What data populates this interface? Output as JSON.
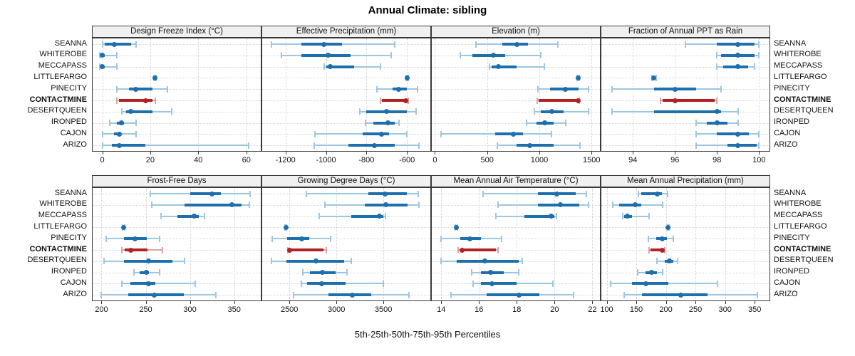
{
  "title": "Annual Climate: sibling",
  "caption": "5th-25th-50th-75th-95th Percentiles",
  "sites": [
    "SEANNA",
    "WHITEROBE",
    "MECCAPASS",
    "LITTLEFARGO",
    "PINECITY",
    "CONTACTMINE",
    "DESERTQUEEN",
    "IRONPED",
    "CAJON",
    "ARIZO"
  ],
  "highlight_site": "CONTACTMINE",
  "highlight_index": 5,
  "colors": {
    "blue": "#1d6fad",
    "blue_light": "#9ec6e0",
    "red": "#b22222",
    "red_light": "#dba3a3",
    "grid": "#d2d2d2",
    "header_bg": "#f0f0f0",
    "border": "#3a3a3a"
  },
  "chart_data": [
    {
      "type": "percentile-dotplot",
      "title": "Design Freeze Index (°C)",
      "xlim": [
        -4,
        66
      ],
      "ticks": [
        0,
        20,
        40,
        60
      ],
      "percentile_labels": [
        "p5",
        "p25",
        "p50",
        "p75",
        "p95"
      ],
      "values": [
        [
          0,
          1,
          5,
          12,
          14
        ],
        [
          -1,
          0,
          0,
          1,
          6
        ],
        [
          -1,
          0,
          0,
          1,
          6
        ],
        [
          21.5,
          21.8,
          22,
          22.2,
          22.5
        ],
        [
          6,
          11,
          14,
          21,
          27
        ],
        [
          6,
          7,
          18,
          21,
          22
        ],
        [
          8,
          10,
          12,
          21,
          29
        ],
        [
          3,
          6,
          8,
          9,
          14
        ],
        [
          0,
          5,
          7,
          8,
          14
        ],
        [
          0,
          4,
          7,
          18,
          61
        ]
      ]
    },
    {
      "type": "percentile-dotplot",
      "title": "Effective Precipitation (mm)",
      "xlim": [
        -1315,
        -485
      ],
      "ticks": [
        -1200,
        -1000,
        -800,
        -600
      ],
      "values": [
        [
          -1270,
          -1120,
          -1010,
          -920,
          -660
        ],
        [
          -1220,
          -1120,
          -990,
          -880,
          -680
        ],
        [
          -1010,
          -1000,
          -980,
          -860,
          -730
        ],
        [
          -605,
          -602,
          -600,
          -598,
          -595
        ],
        [
          -750,
          -670,
          -640,
          -600,
          -550
        ],
        [
          -730,
          -725,
          -605,
          -600,
          -595
        ],
        [
          -835,
          -800,
          -700,
          -600,
          -555
        ],
        [
          -805,
          -765,
          -695,
          -660,
          -640
        ],
        [
          -1055,
          -820,
          -725,
          -690,
          -600
        ],
        [
          -1060,
          -890,
          -760,
          -660,
          -540
        ]
      ]
    },
    {
      "type": "percentile-dotplot",
      "title": "Elevation (m)",
      "xlim": [
        -30,
        1580
      ],
      "ticks": [
        0,
        500,
        1000,
        1500
      ],
      "values": [
        [
          390,
          645,
          785,
          890,
          1175
        ],
        [
          240,
          360,
          560,
          670,
          1015
        ],
        [
          520,
          545,
          605,
          780,
          1045
        ],
        [
          1360,
          1365,
          1370,
          1375,
          1380
        ],
        [
          985,
          1105,
          1250,
          1375,
          1470
        ],
        [
          980,
          990,
          1370,
          1378,
          1385
        ],
        [
          950,
          1015,
          1120,
          1230,
          1470
        ],
        [
          880,
          975,
          1050,
          1140,
          1250
        ],
        [
          60,
          575,
          750,
          845,
          1115
        ],
        [
          600,
          780,
          905,
          1140,
          1390
        ]
      ]
    },
    {
      "type": "percentile-dotplot",
      "title": "Fraction of Annual PPT as Rain",
      "xlim": [
        92.5,
        100.5
      ],
      "ticks": [
        94,
        96,
        98,
        100
      ],
      "values": [
        [
          96.5,
          98,
          99,
          99.8,
          100
        ],
        [
          98,
          98.2,
          99,
          99.8,
          100
        ],
        [
          98,
          98.3,
          99,
          99.5,
          99.8
        ],
        [
          94.9,
          94.95,
          95,
          95.05,
          95.1
        ],
        [
          93,
          95,
          96,
          97,
          98.2
        ],
        [
          95.3,
          95.4,
          96,
          97.9,
          98
        ],
        [
          93,
          95,
          98,
          98.2,
          99
        ],
        [
          97,
          97.5,
          98,
          98.5,
          99
        ],
        [
          97,
          98,
          99,
          99.5,
          100
        ],
        [
          97,
          98.5,
          99,
          99.9,
          100
        ]
      ]
    },
    {
      "type": "percentile-dotplot",
      "title": "Frost-Free Days",
      "xlim": [
        190,
        380
      ],
      "ticks": [
        200,
        250,
        300,
        350
      ],
      "values": [
        [
          255,
          300,
          325,
          335,
          368
        ],
        [
          257,
          294,
          347,
          358,
          367
        ],
        [
          267,
          286,
          305,
          310,
          316
        ],
        [
          224,
          224.5,
          225,
          225.5,
          226
        ],
        [
          205,
          225,
          238,
          251,
          266
        ],
        [
          223,
          226,
          233,
          252,
          269
        ],
        [
          203,
          225,
          253,
          280,
          294
        ],
        [
          237,
          243,
          251,
          254,
          266
        ],
        [
          223,
          233,
          253,
          261,
          306
        ],
        [
          200,
          230,
          260,
          293,
          329
        ]
      ]
    },
    {
      "type": "percentile-dotplot",
      "title": "Growing Degree Days (°C)",
      "xlim": [
        2210,
        4000
      ],
      "ticks": [
        2500,
        3000,
        3500
      ],
      "values": [
        [
          2680,
          3340,
          3520,
          3750,
          3870
        ],
        [
          2875,
          3300,
          3525,
          3760,
          3880
        ],
        [
          2820,
          3160,
          3455,
          3500,
          3520
        ],
        [
          2450,
          2455,
          2460,
          2465,
          2470
        ],
        [
          2315,
          2475,
          2630,
          2710,
          2935
        ],
        [
          2480,
          2490,
          2500,
          2860,
          2895
        ],
        [
          2305,
          2470,
          2780,
          3085,
          3160
        ],
        [
          2640,
          2715,
          2850,
          2990,
          3110
        ],
        [
          2630,
          2690,
          2840,
          3100,
          3500
        ],
        [
          2540,
          2915,
          3170,
          3375,
          3775
        ]
      ]
    },
    {
      "type": "percentile-dotplot",
      "title": "Mean Annual Air Temperature (°C)",
      "xlim": [
        13.5,
        22.4
      ],
      "ticks": [
        14,
        16,
        18,
        20,
        22
      ],
      "values": [
        [
          16.2,
          19.1,
          20.1,
          21.1,
          21.7
        ],
        [
          17,
          19.1,
          20.3,
          21.3,
          21.8
        ],
        [
          16.9,
          18.4,
          19.8,
          20,
          20.1
        ],
        [
          14.75,
          14.78,
          14.8,
          14.82,
          14.85
        ],
        [
          14,
          15,
          15.5,
          16.1,
          17.2
        ],
        [
          14.9,
          15,
          15.1,
          16.9,
          17
        ],
        [
          14,
          14.8,
          16.3,
          18.1,
          18.3
        ],
        [
          15.6,
          16.1,
          16.6,
          17.3,
          18.1
        ],
        [
          15.7,
          16.1,
          16.7,
          18,
          19.9
        ],
        [
          14.5,
          16.4,
          18.1,
          19.2,
          21
        ]
      ]
    },
    {
      "type": "percentile-dotplot",
      "title": "Mean Annual Precipitation (mm)",
      "xlim": [
        91,
        375
      ],
      "ticks": [
        100,
        150,
        200,
        250,
        300,
        350
      ],
      "values": [
        [
          153,
          158,
          186,
          193,
          203
        ],
        [
          110,
          121,
          148,
          158,
          194
        ],
        [
          127,
          129,
          135,
          143,
          172
        ],
        [
          203,
          203.5,
          204,
          204.5,
          205
        ],
        [
          170,
          183,
          194,
          202,
          213
        ],
        [
          171,
          174,
          194,
          196,
          198
        ],
        [
          185,
          198,
          206,
          213,
          220
        ],
        [
          152,
          165,
          176,
          185,
          195
        ],
        [
          106,
          143,
          166,
          204,
          287
        ],
        [
          130,
          160,
          225,
          270,
          355
        ]
      ]
    }
  ]
}
